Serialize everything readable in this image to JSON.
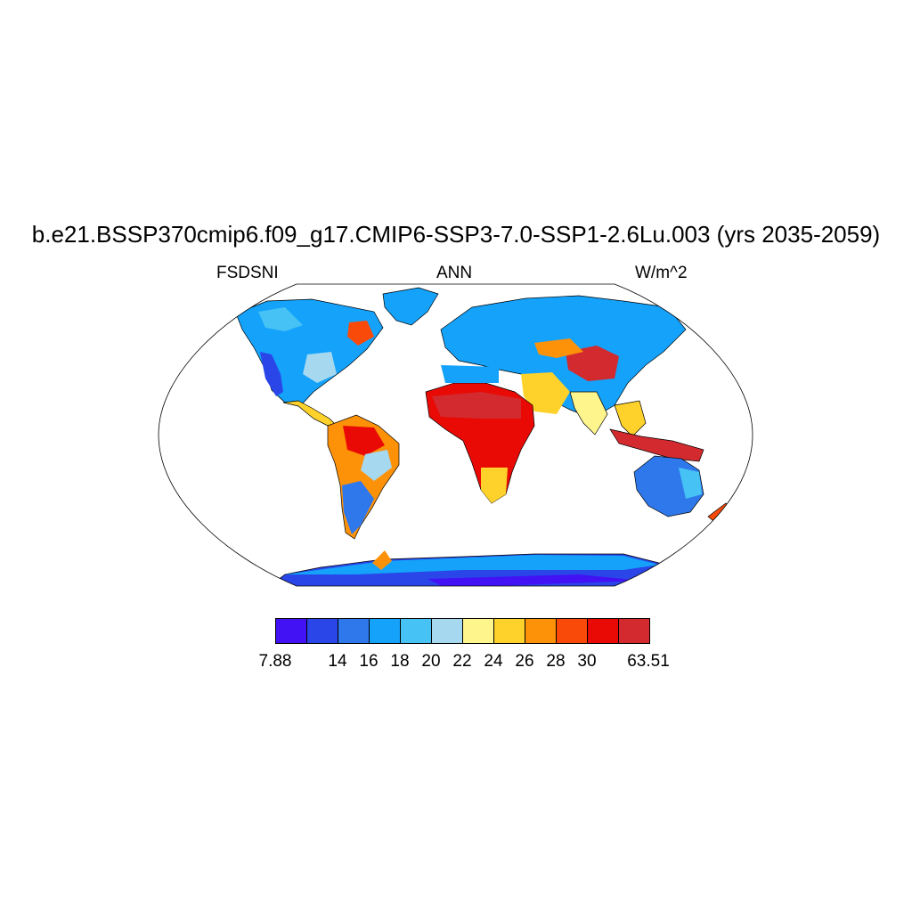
{
  "title": "b.e21.BSSP370cmip6.f09_g17.CMIP6-SSP3-7.0-SSP1-2.6Lu.003 (yrs 2035-2059)",
  "left_label": "FSDSNI",
  "center_label": "ANN",
  "right_label": "W/m^2",
  "colorbar": {
    "colors": [
      "#4212f5",
      "#2a46e8",
      "#2f78ec",
      "#14a2fb",
      "#46c2f4",
      "#a6d8ef",
      "#fef58c",
      "#fed22a",
      "#fd9209",
      "#fa4a09",
      "#ea0a05",
      "#d22a2e"
    ],
    "tick_labels": [
      "7.88",
      "14",
      "16",
      "18",
      "20",
      "22",
      "24",
      "26",
      "28",
      "30",
      "63.51"
    ]
  }
}
